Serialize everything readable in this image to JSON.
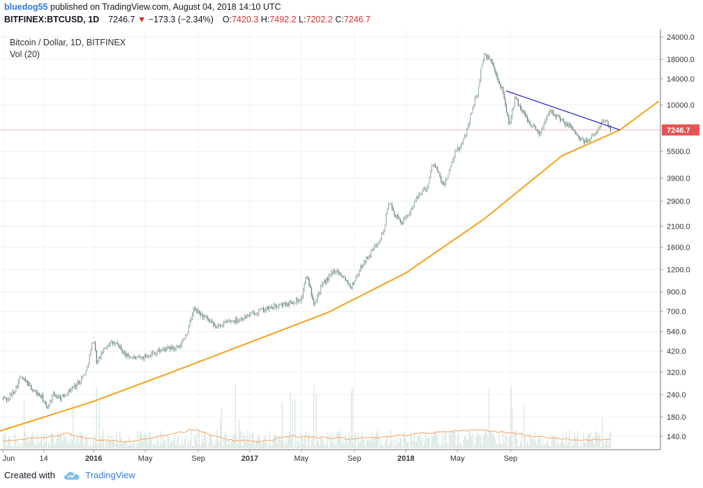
{
  "header": {
    "username": "bluedog55",
    "published_text": "published on TradingView.com, August 04, 2018 14:10 UTC",
    "symbol": "BITFINEX:BTCUSD, 1D",
    "last": "7246.7",
    "change": "−173.3 (−2.34%)",
    "o_label": "O:",
    "o_value": "7420.3",
    "h_label": "H:",
    "h_value": "7492.2",
    "l_label": "L:",
    "l_value": "7202.2",
    "c_label": "C:",
    "c_value": "7246.7"
  },
  "legend": {
    "title": "Bitcoin / Dollar, 1D, BITFINEX",
    "volume": "Vol (20)"
  },
  "footer": {
    "created_with": "Created with",
    "brand": "TradingView"
  },
  "colors": {
    "candle": "#6d8f7e",
    "trendline": "#2b2bd6",
    "support_curve": "#f5a01a",
    "last_price": "#e55353",
    "volume_ma": "#f7a35c",
    "volume_bar": "#d7e5dd"
  },
  "chart_data": {
    "type": "candlestick",
    "title": "Bitcoin / Dollar, 1D, BITFINEX",
    "y_scale": "log",
    "ylim": [
      118,
      26500
    ],
    "y_ticks": [
      "24000.0",
      "18000.0",
      "14000.0",
      "10000.0",
      "7246.7",
      "5500.0",
      "3900.0",
      "2900.0",
      "2100.0",
      "1600.0",
      "1200.0",
      "900.0",
      "700.0",
      "540.0",
      "420.0",
      "320.0",
      "240.0",
      "180.0",
      "140.0"
    ],
    "x_ticks": [
      "Jun",
      "14",
      "2016",
      "May",
      "Sep",
      "2017",
      "May",
      "Sep",
      "2018",
      "May",
      "Sep"
    ],
    "last_price": 7246.7,
    "price_path": [
      [
        2014.42,
        230
      ],
      [
        2014.45,
        225
      ],
      [
        2014.5,
        260
      ],
      [
        2014.53,
        300
      ],
      [
        2014.57,
        280
      ],
      [
        2014.62,
        250
      ],
      [
        2014.67,
        230
      ],
      [
        2014.7,
        200
      ],
      [
        2014.74,
        240
      ],
      [
        2014.79,
        230
      ],
      [
        2014.84,
        250
      ],
      [
        2014.9,
        280
      ],
      [
        2014.95,
        320
      ],
      [
        2015.0,
        500
      ],
      [
        2015.02,
        360
      ],
      [
        2015.06,
        420
      ],
      [
        2015.1,
        470
      ],
      [
        2015.16,
        450
      ],
      [
        2015.2,
        400
      ],
      [
        2015.28,
        380
      ],
      [
        2015.35,
        400
      ],
      [
        2015.45,
        430
      ],
      [
        2015.55,
        440
      ],
      [
        2015.6,
        540
      ],
      [
        2015.64,
        720
      ],
      [
        2015.67,
        690
      ],
      [
        2015.72,
        640
      ],
      [
        2015.78,
        570
      ],
      [
        2015.85,
        610
      ],
      [
        2015.95,
        640
      ],
      [
        2016.05,
        700
      ],
      [
        2016.15,
        740
      ],
      [
        2016.25,
        780
      ],
      [
        2016.33,
        820
      ],
      [
        2016.36,
        1100
      ],
      [
        2016.38,
        1000
      ],
      [
        2016.41,
        780
      ],
      [
        2016.47,
        1000
      ],
      [
        2016.55,
        1200
      ],
      [
        2016.6,
        1100
      ],
      [
        2016.65,
        960
      ],
      [
        2016.72,
        1280
      ],
      [
        2016.8,
        1600
      ],
      [
        2016.86,
        2000
      ],
      [
        2016.89,
        2900
      ],
      [
        2016.92,
        2500
      ],
      [
        2016.97,
        2200
      ],
      [
        2017.0,
        2300
      ],
      [
        2017.04,
        2700
      ],
      [
        2017.1,
        3300
      ],
      [
        2017.14,
        3500
      ],
      [
        2017.17,
        4800
      ],
      [
        2017.2,
        4300
      ],
      [
        2017.24,
        3500
      ],
      [
        2017.27,
        4100
      ],
      [
        2017.32,
        5500
      ],
      [
        2017.36,
        6000
      ],
      [
        2017.4,
        7800
      ],
      [
        2017.43,
        10000
      ],
      [
        2017.46,
        11500
      ],
      [
        2017.48,
        16000
      ],
      [
        2017.5,
        19000
      ],
      [
        2017.54,
        18000
      ],
      [
        2017.58,
        14500
      ],
      [
        2017.62,
        12000
      ],
      [
        2017.66,
        7800
      ],
      [
        2017.7,
        11000
      ],
      [
        2017.73,
        9800
      ],
      [
        2017.78,
        8200
      ],
      [
        2017.82,
        7500
      ],
      [
        2017.86,
        6900
      ],
      [
        2017.92,
        9500
      ],
      [
        2017.97,
        8600
      ],
      [
        2018.02,
        7800
      ],
      [
        2018.06,
        7600
      ],
      [
        2018.1,
        6600
      ],
      [
        2018.14,
        6200
      ],
      [
        2018.18,
        6500
      ],
      [
        2018.22,
        7000
      ],
      [
        2018.26,
        8200
      ],
      [
        2018.29,
        8000
      ],
      [
        2018.31,
        7246.7
      ]
    ],
    "resistance_trendline": [
      [
        2017.64,
        12000
      ],
      [
        2018.37,
        7246.7
      ]
    ],
    "support_curve": [
      [
        2014.4,
        150
      ],
      [
        2015.0,
        220
      ],
      [
        2015.5,
        320
      ],
      [
        2016.0,
        470
      ],
      [
        2016.5,
        690
      ],
      [
        2017.0,
        1150
      ],
      [
        2017.5,
        2300
      ],
      [
        2018.0,
        5200
      ],
      [
        2018.37,
        7246.7
      ],
      [
        2018.62,
        10500
      ]
    ],
    "volume_ma_level": [
      0.1,
      0.15,
      0.22,
      0.12,
      0.1,
      0.2,
      0.28,
      0.12,
      0.1,
      0.18,
      0.16,
      0.14,
      0.18,
      0.22,
      0.26,
      0.28,
      0.22,
      0.16,
      0.12,
      0.14
    ]
  }
}
